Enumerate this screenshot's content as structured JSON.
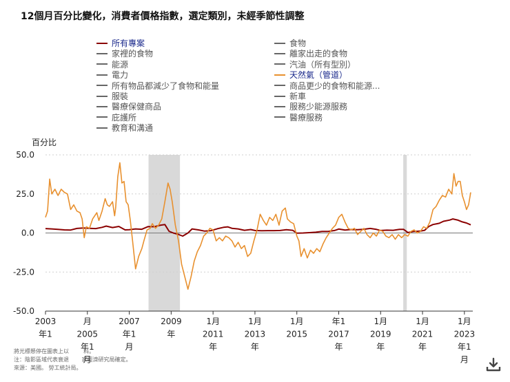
{
  "title": "12個月百分比變化，消費者價格指數，選定類別，未經季節性調整",
  "legend": {
    "left": [
      {
        "label": "所有專案",
        "selected": true,
        "color": "#8b0000"
      },
      {
        "label": "家裡的食物",
        "selected": false,
        "color": "#666666"
      },
      {
        "label": "能源",
        "selected": false,
        "color": "#666666"
      },
      {
        "label": "電力",
        "selected": false,
        "color": "#666666"
      },
      {
        "label": "所有物品都減少了食物和能量",
        "selected": false,
        "color": "#666666"
      },
      {
        "label": "服裝",
        "selected": false,
        "color": "#666666"
      },
      {
        "label": "醫療保健商品",
        "selected": false,
        "color": "#666666"
      },
      {
        "label": "庇護所",
        "selected": false,
        "color": "#666666"
      },
      {
        "label": "教育和溝通",
        "selected": false,
        "color": "#666666"
      }
    ],
    "right": [
      {
        "label": "食物",
        "selected": false,
        "color": "#666666"
      },
      {
        "label": "離家出走的食物",
        "selected": false,
        "color": "#666666"
      },
      {
        "label": "汽油（所有型別）",
        "selected": false,
        "color": "#666666"
      },
      {
        "label": "天然氣（管道）",
        "selected": true,
        "color": "#e8902e"
      },
      {
        "label": "商品更少的食物和能源...",
        "selected": false,
        "color": "#666666"
      },
      {
        "label": "新車",
        "selected": false,
        "color": "#666666"
      },
      {
        "label": "服務少能源服務",
        "selected": false,
        "color": "#666666"
      },
      {
        "label": "醫療服務",
        "selected": false,
        "color": "#666666"
      }
    ]
  },
  "footnotes": [
    "將光標懸停在圖表上以 　　 料。",
    "注：陰影區域代表衰退　　 家經濟研究局確定。",
    "來源：美國。 勞工統計局。"
  ],
  "download_icon": "download-icon",
  "chart_data": {
    "type": "line",
    "ylabel": "百分比",
    "ylim": [
      -50,
      50
    ],
    "yticks": [
      50.0,
      25.0,
      0.0,
      -25.0,
      -50.0
    ],
    "ytick_labels": [
      "50.0",
      "25.0",
      "0.0",
      "-25.0",
      "-50.0"
    ],
    "xlim": [
      2003.0,
      2023.4
    ],
    "xticks": [
      {
        "x": 2003.0,
        "lines": [
          "2003",
          "年1"
        ]
      },
      {
        "x": 2005.0,
        "lines": [
          "月",
          "2005",
          "年1",
          "月"
        ]
      },
      {
        "x": 2007.0,
        "lines": [
          "2007",
          "年1",
          "月"
        ]
      },
      {
        "x": 2009.0,
        "lines": [
          "2009",
          "年"
        ]
      },
      {
        "x": 2011.0,
        "lines": [
          "1月",
          "2011",
          "年"
        ]
      },
      {
        "x": 2013.0,
        "lines": [
          "1月",
          "2013",
          "年"
        ]
      },
      {
        "x": 2015.0,
        "lines": [
          "1月",
          "2015"
        ]
      },
      {
        "x": 2017.0,
        "lines": [
          "年1",
          "2017",
          "年"
        ]
      },
      {
        "x": 2019.0,
        "lines": [
          "1月",
          "2019",
          "年"
        ]
      },
      {
        "x": 2021.0,
        "lines": [
          "1月",
          "2021",
          "年"
        ]
      },
      {
        "x": 2023.0,
        "lines": [
          "1月",
          "2023",
          "年1",
          "月"
        ]
      }
    ],
    "recessions": [
      [
        2007.92,
        2009.42
      ],
      [
        2020.08,
        2020.25
      ]
    ],
    "grid": true,
    "series": [
      {
        "name": "所有專案",
        "color": "#8b0000",
        "points": [
          [
            2003.0,
            2.8
          ],
          [
            2003.3,
            2.6
          ],
          [
            2003.6,
            2.3
          ],
          [
            2003.9,
            2.0
          ],
          [
            2004.2,
            1.9
          ],
          [
            2004.5,
            2.9
          ],
          [
            2004.8,
            3.2
          ],
          [
            2005.1,
            3.0
          ],
          [
            2005.4,
            2.8
          ],
          [
            2005.7,
            3.6
          ],
          [
            2005.9,
            4.4
          ],
          [
            2006.2,
            3.5
          ],
          [
            2006.5,
            4.2
          ],
          [
            2006.8,
            2.0
          ],
          [
            2007.0,
            2.1
          ],
          [
            2007.3,
            2.6
          ],
          [
            2007.6,
            2.4
          ],
          [
            2007.9,
            4.1
          ],
          [
            2008.2,
            4.0
          ],
          [
            2008.5,
            5.0
          ],
          [
            2008.7,
            5.4
          ],
          [
            2008.9,
            1.1
          ],
          [
            2009.1,
            0.0
          ],
          [
            2009.3,
            -0.7
          ],
          [
            2009.55,
            -2.0
          ],
          [
            2009.8,
            0.0
          ],
          [
            2010.0,
            2.6
          ],
          [
            2010.3,
            2.0
          ],
          [
            2010.6,
            1.2
          ],
          [
            2010.9,
            1.5
          ],
          [
            2011.2,
            2.7
          ],
          [
            2011.5,
            3.6
          ],
          [
            2011.7,
            3.9
          ],
          [
            2011.9,
            3.0
          ],
          [
            2012.2,
            2.6
          ],
          [
            2012.5,
            1.7
          ],
          [
            2012.8,
            2.2
          ],
          [
            2013.0,
            1.6
          ],
          [
            2013.3,
            1.4
          ],
          [
            2013.6,
            1.5
          ],
          [
            2013.9,
            1.5
          ],
          [
            2014.2,
            1.6
          ],
          [
            2014.5,
            2.1
          ],
          [
            2014.8,
            1.7
          ],
          [
            2015.0,
            -0.1
          ],
          [
            2015.3,
            0.0
          ],
          [
            2015.6,
            0.2
          ],
          [
            2015.9,
            0.5
          ],
          [
            2016.2,
            1.0
          ],
          [
            2016.5,
            1.0
          ],
          [
            2016.8,
            1.6
          ],
          [
            2017.0,
            2.5
          ],
          [
            2017.3,
            1.9
          ],
          [
            2017.6,
            2.2
          ],
          [
            2017.9,
            2.1
          ],
          [
            2018.2,
            2.4
          ],
          [
            2018.5,
            2.9
          ],
          [
            2018.8,
            2.3
          ],
          [
            2019.0,
            1.6
          ],
          [
            2019.3,
            1.8
          ],
          [
            2019.6,
            1.7
          ],
          [
            2019.9,
            2.3
          ],
          [
            2020.1,
            2.3
          ],
          [
            2020.3,
            0.3
          ],
          [
            2020.6,
            1.0
          ],
          [
            2020.9,
            1.2
          ],
          [
            2021.1,
            1.7
          ],
          [
            2021.3,
            4.2
          ],
          [
            2021.5,
            5.4
          ],
          [
            2021.8,
            6.2
          ],
          [
            2022.0,
            7.5
          ],
          [
            2022.3,
            8.3
          ],
          [
            2022.45,
            9.0
          ],
          [
            2022.7,
            8.2
          ],
          [
            2022.9,
            7.1
          ],
          [
            2023.1,
            6.4
          ],
          [
            2023.3,
            5.2
          ]
        ]
      },
      {
        "name": "天然氣（管道）",
        "color": "#e8902e",
        "points": [
          [
            2003.0,
            10.0
          ],
          [
            2003.1,
            14.0
          ],
          [
            2003.2,
            34.5
          ],
          [
            2003.3,
            25.0
          ],
          [
            2003.45,
            28.0
          ],
          [
            2003.6,
            24.0
          ],
          [
            2003.75,
            28.0
          ],
          [
            2003.9,
            26.0
          ],
          [
            2004.05,
            25.0
          ],
          [
            2004.2,
            15.0
          ],
          [
            2004.35,
            18.0
          ],
          [
            2004.5,
            14.0
          ],
          [
            2004.65,
            13.0
          ],
          [
            2004.75,
            9.0
          ],
          [
            2004.85,
            -3.0
          ],
          [
            2004.95,
            4.0
          ],
          [
            2005.1,
            3.0
          ],
          [
            2005.25,
            9.0
          ],
          [
            2005.45,
            13.0
          ],
          [
            2005.55,
            8.0
          ],
          [
            2005.7,
            14.0
          ],
          [
            2005.85,
            22.0
          ],
          [
            2005.95,
            18.0
          ],
          [
            2006.05,
            17.0
          ],
          [
            2006.2,
            20.0
          ],
          [
            2006.3,
            11.0
          ],
          [
            2006.35,
            16.0
          ],
          [
            2006.45,
            36.0
          ],
          [
            2006.55,
            45.0
          ],
          [
            2006.65,
            32.0
          ],
          [
            2006.75,
            33.0
          ],
          [
            2006.85,
            20.0
          ],
          [
            2006.95,
            18.0
          ],
          [
            2007.05,
            8.0
          ],
          [
            2007.15,
            -4.0
          ],
          [
            2007.3,
            -23.0
          ],
          [
            2007.45,
            -15.0
          ],
          [
            2007.6,
            -10.0
          ],
          [
            2007.7,
            -5.0
          ],
          [
            2007.85,
            2.0
          ],
          [
            2008.0,
            3.0
          ],
          [
            2008.1,
            6.0
          ],
          [
            2008.25,
            3.0
          ],
          [
            2008.4,
            5.0
          ],
          [
            2008.55,
            9.0
          ],
          [
            2008.7,
            20.0
          ],
          [
            2008.85,
            32.0
          ],
          [
            2008.95,
            28.0
          ],
          [
            2009.05,
            20.0
          ],
          [
            2009.2,
            5.0
          ],
          [
            2009.35,
            -5.0
          ],
          [
            2009.5,
            -20.0
          ],
          [
            2009.65,
            -28.0
          ],
          [
            2009.8,
            -36.0
          ],
          [
            2009.95,
            -28.0
          ],
          [
            2010.1,
            -18.0
          ],
          [
            2010.25,
            -12.0
          ],
          [
            2010.4,
            -8.0
          ],
          [
            2010.55,
            -2.0
          ],
          [
            2010.7,
            0.0
          ],
          [
            2010.85,
            3.0
          ],
          [
            2011.0,
            2.0
          ],
          [
            2011.15,
            -5.0
          ],
          [
            2011.3,
            -3.0
          ],
          [
            2011.45,
            -5.0
          ],
          [
            2011.6,
            -2.0
          ],
          [
            2011.75,
            -3.0
          ],
          [
            2011.9,
            -5.0
          ],
          [
            2012.05,
            -9.0
          ],
          [
            2012.2,
            -6.0
          ],
          [
            2012.35,
            -10.0
          ],
          [
            2012.5,
            -8.0
          ],
          [
            2012.65,
            -15.0
          ],
          [
            2012.8,
            -13.0
          ],
          [
            2012.95,
            -5.0
          ],
          [
            2013.1,
            2.0
          ],
          [
            2013.25,
            12.0
          ],
          [
            2013.4,
            8.0
          ],
          [
            2013.55,
            5.0
          ],
          [
            2013.7,
            10.0
          ],
          [
            2013.85,
            8.0
          ],
          [
            2014.0,
            12.0
          ],
          [
            2014.15,
            5.0
          ],
          [
            2014.3,
            14.0
          ],
          [
            2014.45,
            16.0
          ],
          [
            2014.55,
            9.0
          ],
          [
            2014.7,
            7.0
          ],
          [
            2014.85,
            6.0
          ],
          [
            2015.0,
            -2.0
          ],
          [
            2015.1,
            -5.0
          ],
          [
            2015.2,
            -15.0
          ],
          [
            2015.35,
            -10.0
          ],
          [
            2015.5,
            -16.0
          ],
          [
            2015.65,
            -11.0
          ],
          [
            2015.8,
            -13.0
          ],
          [
            2015.95,
            -10.0
          ],
          [
            2016.1,
            -12.0
          ],
          [
            2016.25,
            -7.0
          ],
          [
            2016.4,
            -3.0
          ],
          [
            2016.55,
            0.0
          ],
          [
            2016.7,
            3.0
          ],
          [
            2016.85,
            5.0
          ],
          [
            2017.0,
            10.0
          ],
          [
            2017.15,
            12.0
          ],
          [
            2017.3,
            7.0
          ],
          [
            2017.45,
            3.0
          ],
          [
            2017.6,
            2.0
          ],
          [
            2017.75,
            3.0
          ],
          [
            2017.9,
            -1.0
          ],
          [
            2018.05,
            1.0
          ],
          [
            2018.2,
            3.0
          ],
          [
            2018.35,
            -1.0
          ],
          [
            2018.5,
            -3.0
          ],
          [
            2018.65,
            0.0
          ],
          [
            2018.8,
            -2.0
          ],
          [
            2018.95,
            2.0
          ],
          [
            2019.1,
            1.0
          ],
          [
            2019.25,
            -2.0
          ],
          [
            2019.4,
            -3.0
          ],
          [
            2019.55,
            -1.0
          ],
          [
            2019.7,
            -4.0
          ],
          [
            2019.85,
            -1.0
          ],
          [
            2020.0,
            -3.0
          ],
          [
            2020.15,
            -1.0
          ],
          [
            2020.3,
            -2.0
          ],
          [
            2020.45,
            1.0
          ],
          [
            2020.6,
            2.0
          ],
          [
            2020.75,
            0.0
          ],
          [
            2020.9,
            1.0
          ],
          [
            2021.05,
            4.0
          ],
          [
            2021.2,
            3.0
          ],
          [
            2021.35,
            7.0
          ],
          [
            2021.5,
            15.0
          ],
          [
            2021.65,
            17.0
          ],
          [
            2021.8,
            21.0
          ],
          [
            2021.95,
            24.0
          ],
          [
            2022.1,
            23.0
          ],
          [
            2022.25,
            28.0
          ],
          [
            2022.4,
            25.0
          ],
          [
            2022.5,
            38.0
          ],
          [
            2022.6,
            30.0
          ],
          [
            2022.7,
            33.0
          ],
          [
            2022.8,
            33.0
          ],
          [
            2022.9,
            24.0
          ],
          [
            2023.0,
            20.0
          ],
          [
            2023.1,
            15.0
          ],
          [
            2023.2,
            18.0
          ],
          [
            2023.3,
            26.0
          ]
        ]
      }
    ]
  }
}
